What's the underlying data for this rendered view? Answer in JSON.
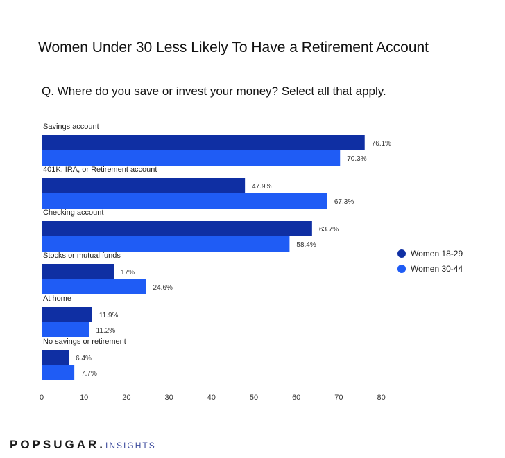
{
  "title": "Women Under 30 Less Likely To Have a Retirement Account",
  "subtitle": "Q. Where do you save or invest your money? Select all that apply.",
  "legend": [
    {
      "label": "Women 18-29",
      "color": "#0f2fa3"
    },
    {
      "label": "Women 30-44",
      "color": "#1f5cf5"
    }
  ],
  "footer": {
    "brand": "POPSUGAR.",
    "suffix": "INSIGHTS"
  },
  "chart_data": {
    "type": "bar",
    "orientation": "horizontal",
    "title": "Women Under 30 Less Likely To Have a Retirement Account",
    "subtitle": "Q. Where do you save or invest your money? Select all that apply.",
    "categories": [
      "Savings account",
      "401K, IRA, or Retirement account",
      "Checking account",
      "Stocks or mutual funds",
      "At home",
      "No savings or retirement"
    ],
    "series": [
      {
        "name": "Women 18-29",
        "color": "#0f2fa3",
        "values": [
          76.1,
          47.9,
          63.7,
          17,
          11.9,
          6.4
        ],
        "labels": [
          "76.1%",
          "47.9%",
          "63.7%",
          "17%",
          "11.9%",
          "6.4%"
        ]
      },
      {
        "name": "Women 30-44",
        "color": "#1f5cf5",
        "values": [
          70.3,
          67.3,
          58.4,
          24.6,
          11.2,
          7.7
        ],
        "labels": [
          "70.3%",
          "67.3%",
          "58.4%",
          "24.6%",
          "11.2%",
          "7.7%"
        ]
      }
    ],
    "xlim": [
      0,
      80
    ],
    "xticks": [
      0,
      10,
      20,
      30,
      40,
      50,
      60,
      70,
      80
    ],
    "grid": false,
    "legend_position": "right"
  }
}
